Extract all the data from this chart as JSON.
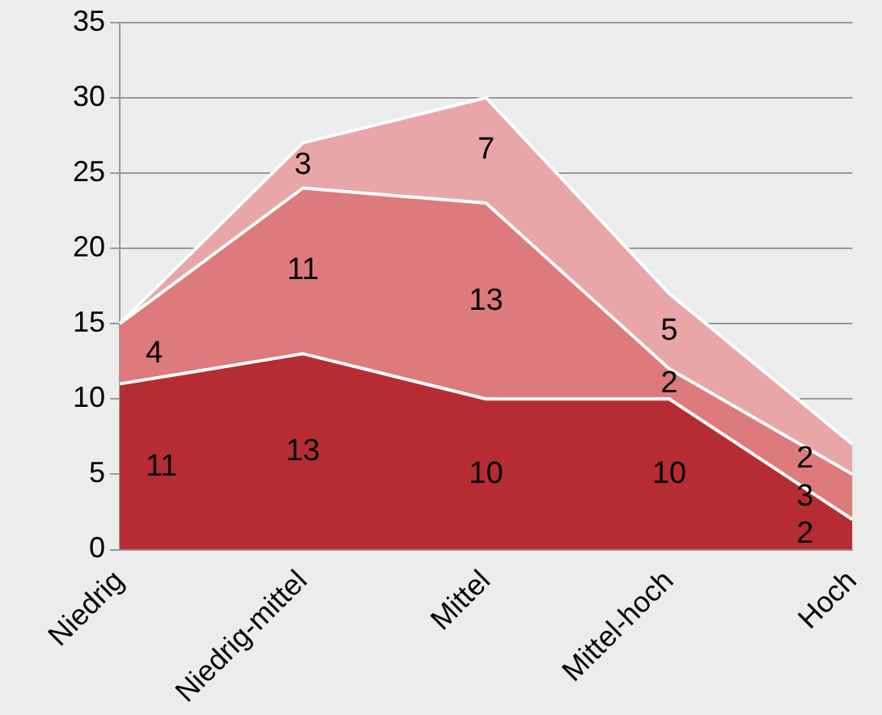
{
  "chart_data": {
    "type": "area",
    "stacked": true,
    "categories": [
      "Niedrig",
      "Niedrig-mittel",
      "Mittel",
      "Mittel-hoch",
      "Hoch"
    ],
    "series": [
      {
        "color": "#b52d33",
        "values": [
          11,
          13,
          10,
          10,
          2
        ],
        "value_labels": [
          "11",
          "13",
          "10",
          "10",
          "2"
        ]
      },
      {
        "color": "#dd7a7b",
        "values": [
          4,
          11,
          13,
          2,
          3
        ],
        "value_labels": [
          "4",
          "11",
          "13",
          "2",
          "3"
        ]
      },
      {
        "color": "#e8a6a8",
        "values": [
          0,
          3,
          7,
          5,
          2
        ],
        "value_labels": [
          null,
          "3",
          "7",
          "5",
          "2"
        ]
      }
    ],
    "ylim": [
      0,
      35
    ],
    "yticks": [
      0,
      5,
      10,
      15,
      20,
      25,
      30,
      35
    ],
    "grid": "y",
    "legend": false
  }
}
